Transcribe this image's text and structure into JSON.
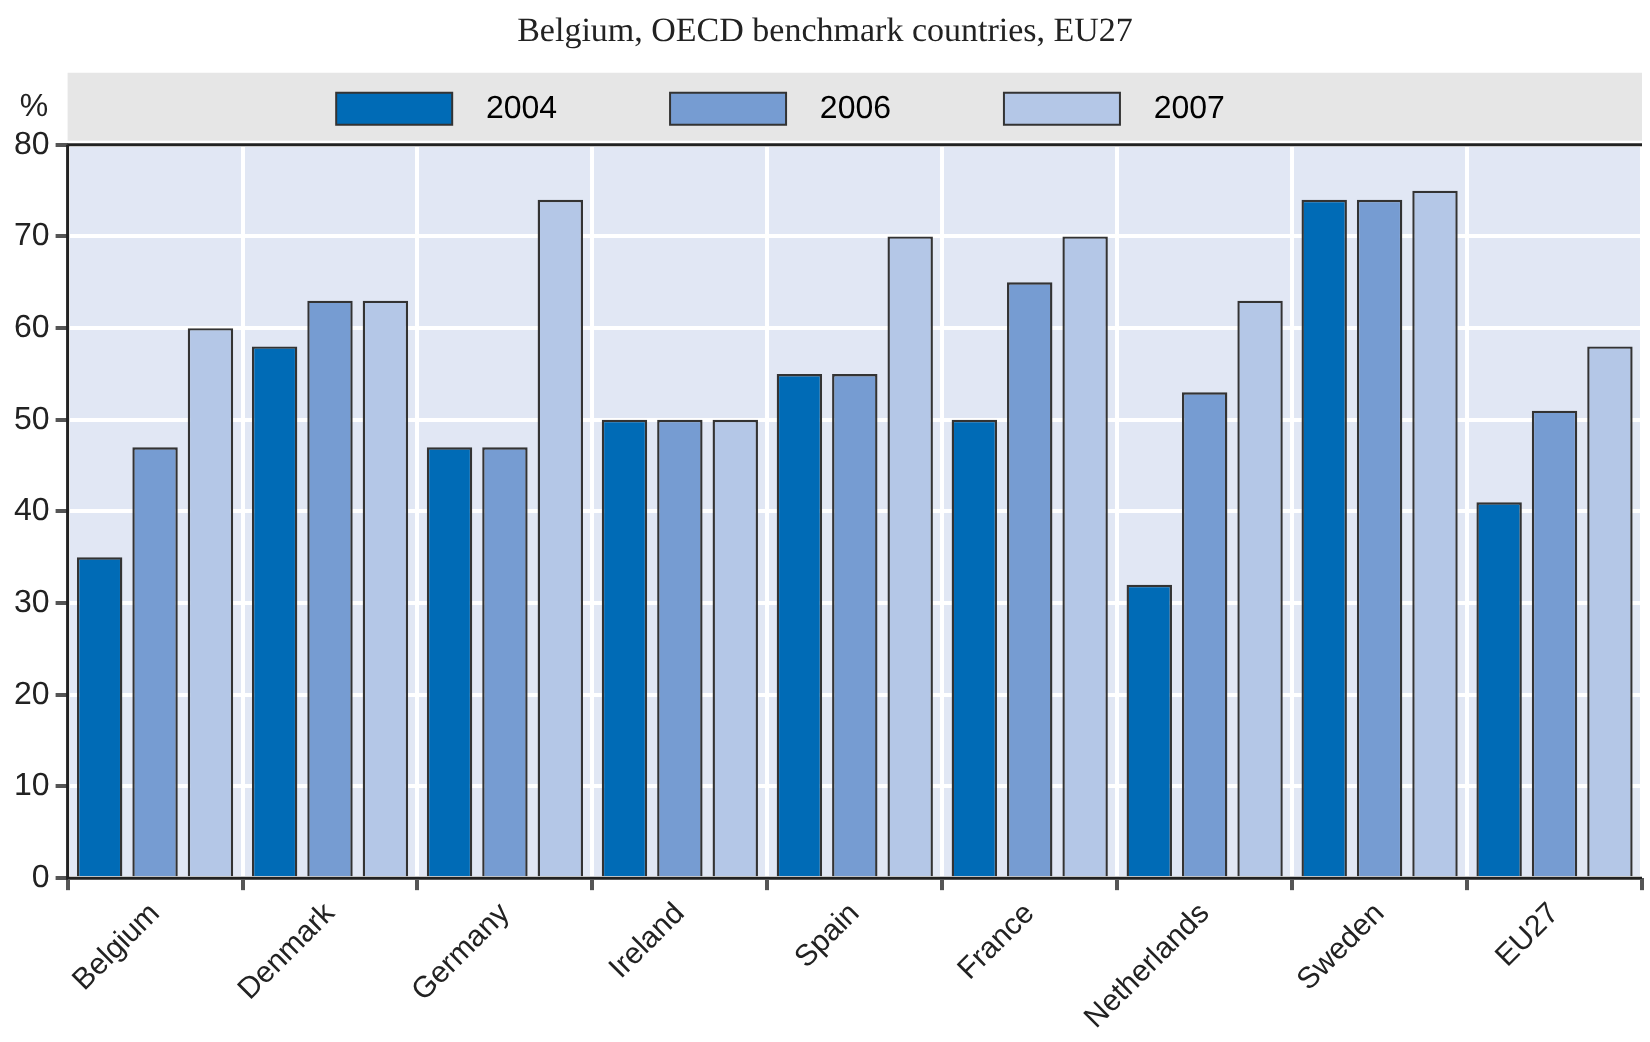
{
  "chart_data": {
    "type": "bar",
    "title": "Belgium, OECD benchmark countries, EU27",
    "ylabel": "%",
    "categories": [
      "Belgium",
      "Denmark",
      "Germany",
      "Ireland",
      "Spain",
      "France",
      "Netherlands",
      "Sweden",
      "EU27"
    ],
    "series": [
      {
        "name": "2004",
        "color": "#006bb6",
        "values": [
          35,
          58,
          47,
          50,
          55,
          50,
          32,
          74,
          41
        ]
      },
      {
        "name": "2006",
        "color": "#769cd2",
        "values": [
          47,
          63,
          47,
          50,
          55,
          65,
          53,
          74,
          51
        ]
      },
      {
        "name": "2007",
        "color": "#b4c7e7",
        "values": [
          60,
          63,
          74,
          50,
          70,
          70,
          63,
          75,
          58
        ]
      }
    ],
    "ylim": [
      0,
      80
    ],
    "yticks": [
      0,
      10,
      20,
      30,
      40,
      50,
      60,
      70,
      80
    ],
    "grid": true,
    "legend": "top"
  }
}
